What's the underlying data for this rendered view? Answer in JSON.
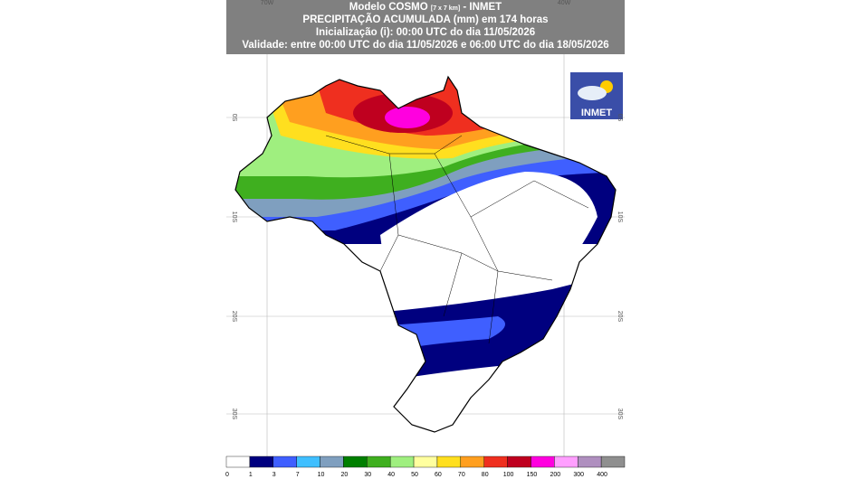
{
  "header": {
    "line1": "Modelo COSMO",
    "line1_small": "[7 x 7 km]",
    "line1_end": "- INMET",
    "line2": "PRECIPITAÇÃO ACUMULADA (mm) em 174 horas",
    "line3": "Inicialização (i): 00:00 UTC do dia 11/05/2026",
    "line4": "Validade: entre 00:00 UTC do dia 11/05/2026 e 06:00 UTC do dia 18/05/2026"
  },
  "logo": "INMET",
  "lon_labels": [
    "70W",
    "40W"
  ],
  "lat_labels": [
    "0S",
    "10S",
    "20S",
    "30S"
  ],
  "legend": [
    {
      "value": 0,
      "color": "#ffffff"
    },
    {
      "value": 1,
      "color": "#00007f"
    },
    {
      "value": 3,
      "color": "#3f5fff"
    },
    {
      "value": 7,
      "color": "#3fbfff"
    },
    {
      "value": 10,
      "color": "#7f9fbf"
    },
    {
      "value": 20,
      "color": "#007f00"
    },
    {
      "value": 30,
      "color": "#3faf1f"
    },
    {
      "value": 40,
      "color": "#9fef7f"
    },
    {
      "value": 50,
      "color": "#ffff9f"
    },
    {
      "value": 60,
      "color": "#ffdf1f"
    },
    {
      "value": 70,
      "color": "#ff9f1f"
    },
    {
      "value": 80,
      "color": "#ef2f1f"
    },
    {
      "value": 100,
      "color": "#bf001f"
    },
    {
      "value": 150,
      "color": "#ff00df"
    },
    {
      "value": 200,
      "color": "#ff9fff"
    },
    {
      "value": 300,
      "color": "#af8fbf"
    },
    {
      "value": 400,
      "color": "#8f8f8f"
    }
  ]
}
